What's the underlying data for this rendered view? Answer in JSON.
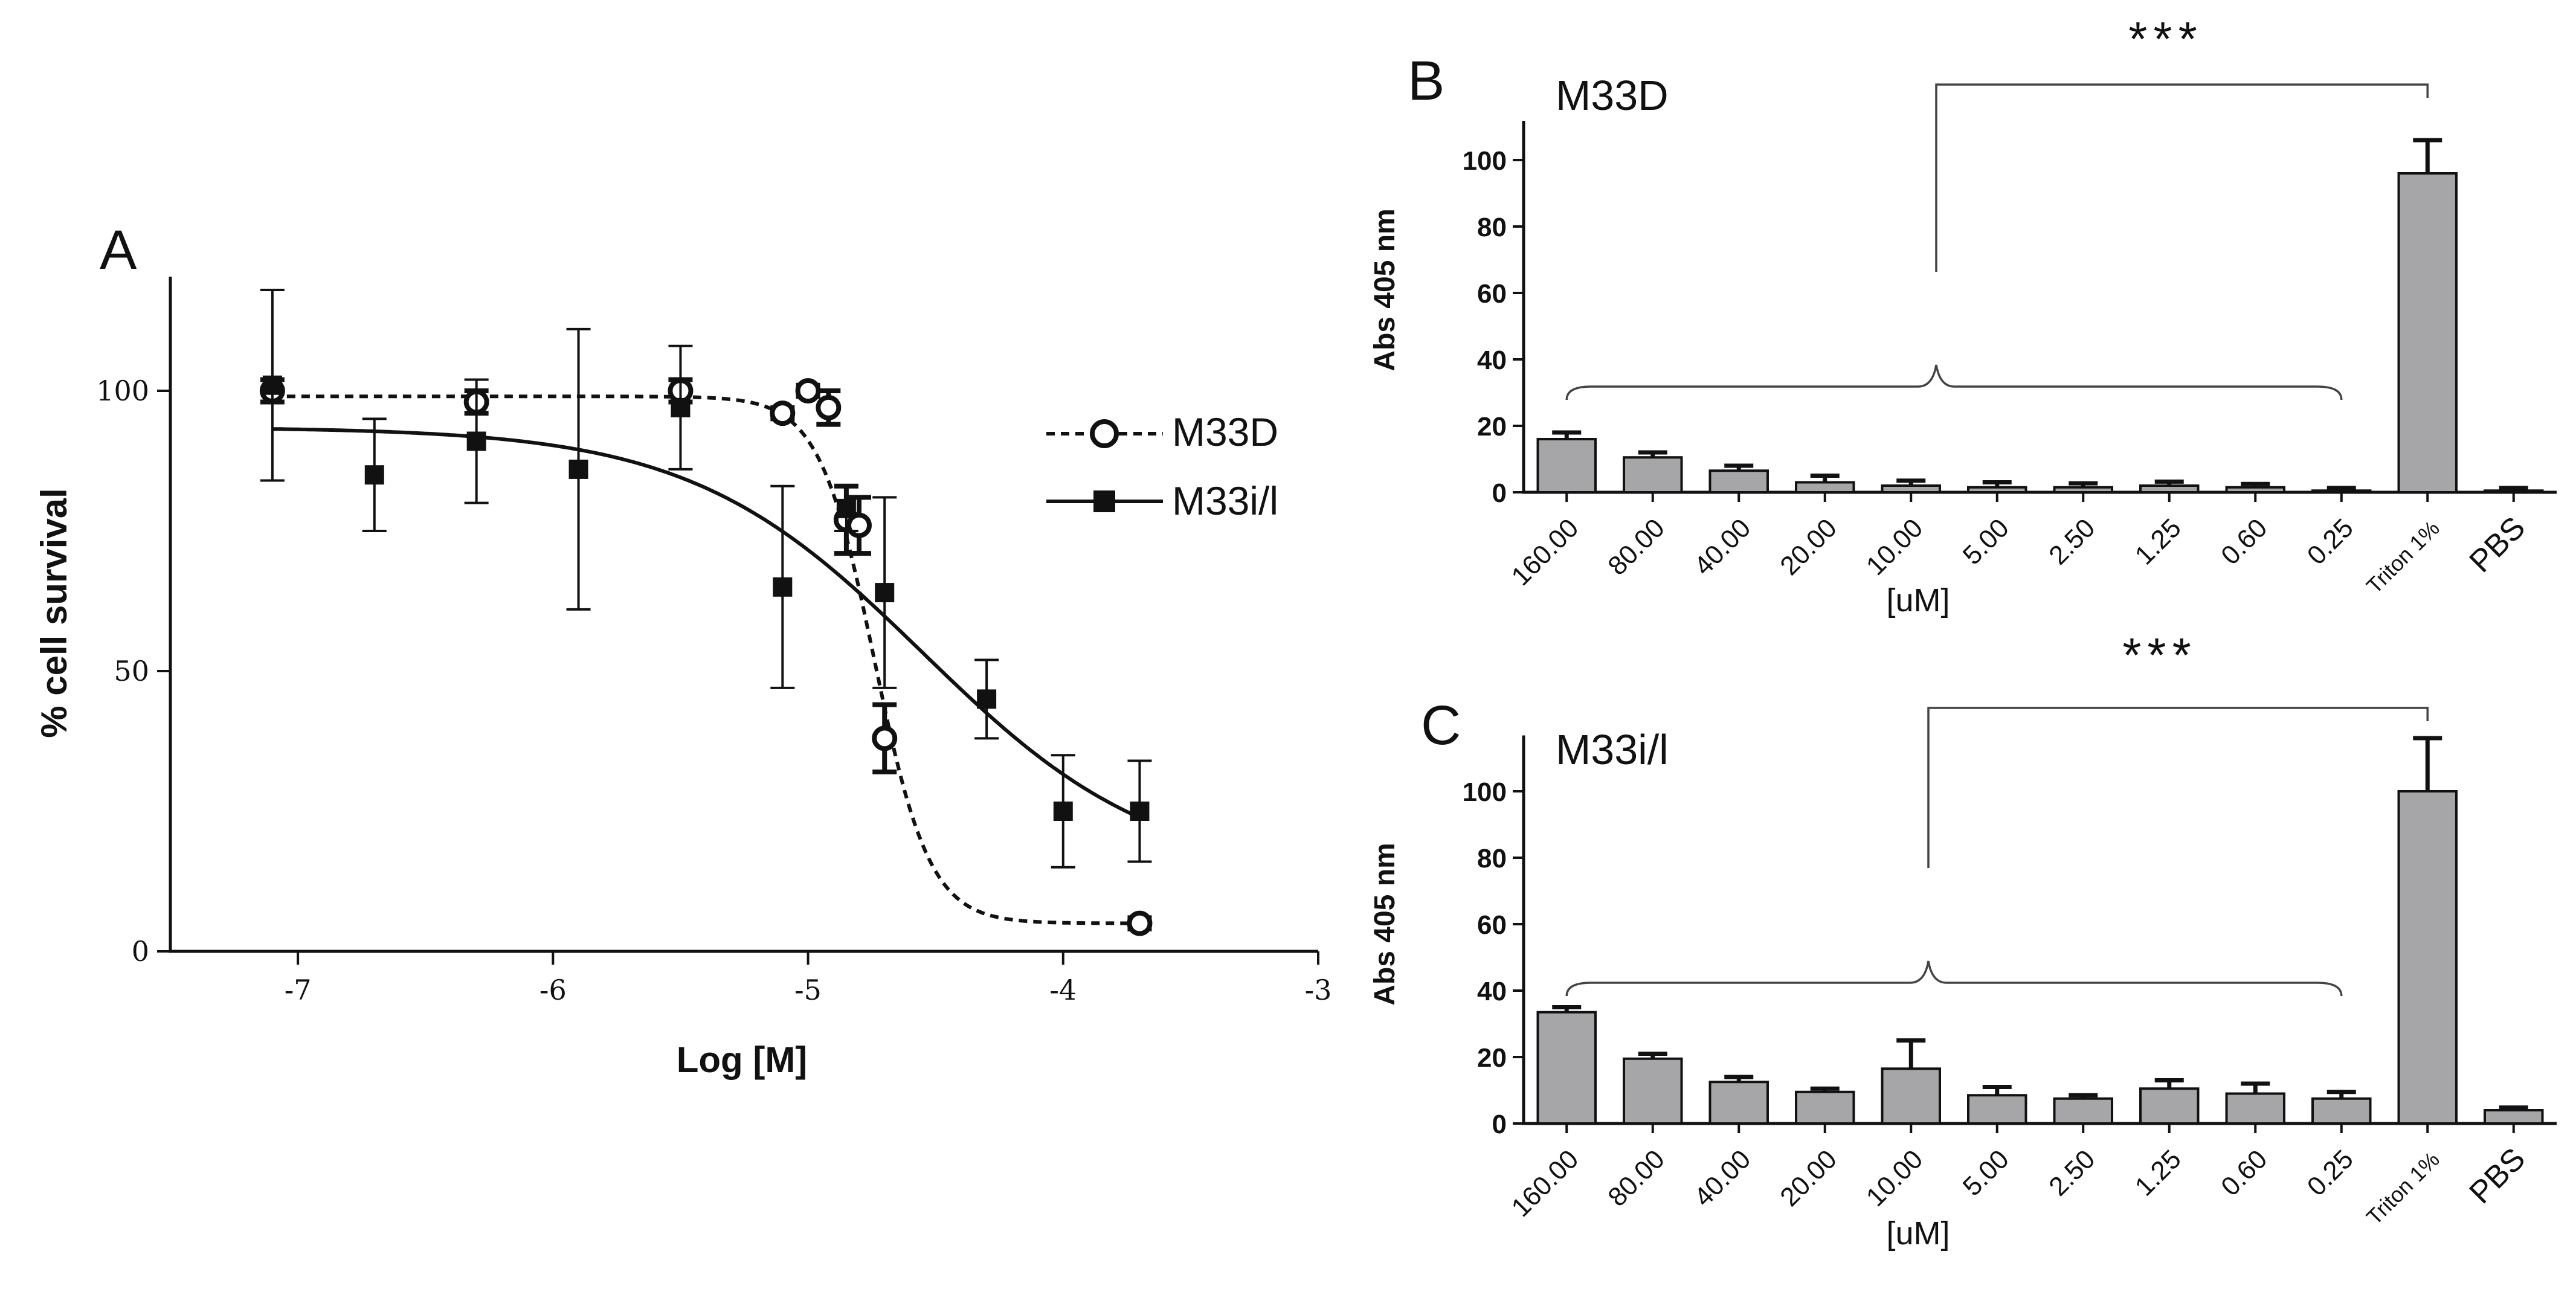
{
  "chart_data": [
    {
      "panel": "A",
      "type": "scatter",
      "title": "",
      "xlabel": "Log [M]",
      "ylabel": "% cell survival",
      "xlim": [
        -7.5,
        -3
      ],
      "ylim": [
        0,
        120
      ],
      "xticks": [
        -7,
        -6,
        -5,
        -4,
        -3
      ],
      "yticks": [
        0,
        50,
        100
      ],
      "legend_position": "right",
      "series": [
        {
          "name": "M33D",
          "marker": "open-circle",
          "line": "dashed",
          "points": [
            {
              "x": -7.1,
              "y": 100,
              "err": 2
            },
            {
              "x": -6.3,
              "y": 98,
              "err": 2
            },
            {
              "x": -5.5,
              "y": 100,
              "err": 2
            },
            {
              "x": -5.1,
              "y": 96,
              "err": 1
            },
            {
              "x": -5.0,
              "y": 100,
              "err": 1
            },
            {
              "x": -4.92,
              "y": 97,
              "err": 3
            },
            {
              "x": -4.85,
              "y": 77,
              "err": 6
            },
            {
              "x": -4.8,
              "y": 76,
              "err": 5
            },
            {
              "x": -4.7,
              "y": 38,
              "err": 6
            },
            {
              "x": -3.7,
              "y": 5,
              "err": 1
            }
          ],
          "fit": {
            "top": 99,
            "bottom": 5,
            "log_ec50": -4.74,
            "hill": -4
          }
        },
        {
          "name": "M33i/l",
          "marker": "filled-square",
          "line": "solid",
          "points": [
            {
              "x": -7.1,
              "y": 101,
              "err": 17
            },
            {
              "x": -6.7,
              "y": 85,
              "err": 10
            },
            {
              "x": -6.3,
              "y": 91,
              "err": 11
            },
            {
              "x": -5.9,
              "y": 86,
              "err": 25
            },
            {
              "x": -5.5,
              "y": 97,
              "err": 11
            },
            {
              "x": -5.1,
              "y": 65,
              "err": 18
            },
            {
              "x": -4.85,
              "y": 79,
              "err": 4
            },
            {
              "x": -4.7,
              "y": 64,
              "err": 17
            },
            {
              "x": -4.3,
              "y": 45,
              "err": 7
            },
            {
              "x": -4.0,
              "y": 25,
              "err": 10
            },
            {
              "x": -3.7,
              "y": 25,
              "err": 9
            }
          ],
          "fit": {
            "top": 93.5,
            "bottom": 13,
            "log_ec50": -4.55,
            "hill": -0.95
          }
        }
      ]
    },
    {
      "panel": "B",
      "type": "bar",
      "title": "M33D",
      "xlabel": "[uM]",
      "ylabel": "Abs 405 nm",
      "ylim": [
        0,
        110
      ],
      "yticks": [
        0,
        20,
        40,
        60,
        80,
        100
      ],
      "categories": [
        "160.00",
        "80.00",
        "40.00",
        "20.00",
        "10.00",
        "5.00",
        "2.50",
        "1.25",
        "0.60",
        "0.25",
        "Triton 1%",
        "PBS"
      ],
      "values": [
        16,
        10.5,
        6.5,
        3,
        2,
        1.5,
        1.5,
        2,
        1.5,
        0.5,
        96,
        0.5
      ],
      "errors": [
        2,
        1.5,
        1.5,
        2,
        1.5,
        1.5,
        1.2,
        1.2,
        1,
        0.8,
        10,
        0.8
      ],
      "significance": "***"
    },
    {
      "panel": "C",
      "type": "bar",
      "title": "M33i/l",
      "xlabel": "[uM]",
      "ylabel": "Abs 405 nm",
      "ylim": [
        0,
        115
      ],
      "yticks": [
        0,
        20,
        40,
        60,
        80,
        100
      ],
      "categories": [
        "160.00",
        "80.00",
        "40.00",
        "20.00",
        "10.00",
        "5.00",
        "2.50",
        "1.25",
        "0.60",
        "0.25",
        "Triton 1%",
        "PBS"
      ],
      "values": [
        33.5,
        19.5,
        12.5,
        9.5,
        16.5,
        8.5,
        7.5,
        10.5,
        9,
        7.5,
        100,
        4
      ],
      "errors": [
        1.5,
        1.5,
        1.5,
        1,
        8.5,
        2.5,
        1,
        2.5,
        3,
        2,
        16,
        0.8
      ],
      "significance": "***"
    }
  ]
}
